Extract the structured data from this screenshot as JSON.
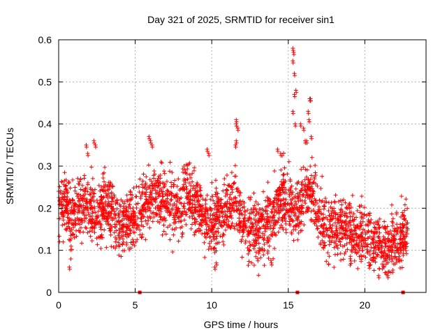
{
  "chart_data": {
    "type": "scatter",
    "title": "Day 321 of 2025, SRMTID for receiver sin1",
    "xlabel": "GPS time / hours",
    "ylabel": "SRMTID / TECUs",
    "xlim": [
      0,
      24
    ],
    "ylim": [
      0,
      0.6
    ],
    "x_ticks": [
      0,
      5,
      10,
      15,
      20
    ],
    "x_tick_labels": [
      "0",
      "5",
      "10",
      "15",
      "20"
    ],
    "y_ticks": [
      0,
      0.1,
      0.2,
      0.3,
      0.4,
      0.5,
      0.6
    ],
    "y_tick_labels": [
      "0",
      "0.1",
      "0.2",
      "0.3",
      "0.4",
      "0.5",
      "0.6"
    ],
    "grid": true,
    "marker": "+",
    "series_color": "#ff0000",
    "trend_anchors": [
      [
        0.0,
        0.2
      ],
      [
        0.4,
        0.22
      ],
      [
        0.8,
        0.17
      ],
      [
        1.2,
        0.2
      ],
      [
        1.8,
        0.21
      ],
      [
        2.5,
        0.19
      ],
      [
        3.0,
        0.21
      ],
      [
        3.5,
        0.19
      ],
      [
        4.0,
        0.15
      ],
      [
        4.5,
        0.17
      ],
      [
        5.0,
        0.17
      ],
      [
        5.5,
        0.21
      ],
      [
        6.0,
        0.23
      ],
      [
        6.5,
        0.24
      ],
      [
        7.0,
        0.21
      ],
      [
        7.5,
        0.2
      ],
      [
        8.0,
        0.21
      ],
      [
        8.5,
        0.23
      ],
      [
        9.0,
        0.2
      ],
      [
        9.5,
        0.18
      ],
      [
        10.0,
        0.16
      ],
      [
        10.5,
        0.19
      ],
      [
        11.0,
        0.2
      ],
      [
        11.5,
        0.23
      ],
      [
        12.0,
        0.16
      ],
      [
        12.5,
        0.15
      ],
      [
        13.0,
        0.15
      ],
      [
        13.5,
        0.16
      ],
      [
        14.0,
        0.18
      ],
      [
        14.5,
        0.23
      ],
      [
        15.0,
        0.22
      ],
      [
        15.5,
        0.19
      ],
      [
        16.0,
        0.22
      ],
      [
        16.5,
        0.24
      ],
      [
        17.0,
        0.19
      ],
      [
        17.5,
        0.15
      ],
      [
        18.0,
        0.16
      ],
      [
        18.5,
        0.16
      ],
      [
        19.0,
        0.15
      ],
      [
        19.5,
        0.14
      ],
      [
        20.0,
        0.14
      ],
      [
        20.5,
        0.12
      ],
      [
        21.0,
        0.11
      ],
      [
        21.5,
        0.1
      ],
      [
        22.0,
        0.12
      ],
      [
        22.5,
        0.14
      ],
      [
        22.8,
        0.14
      ]
    ],
    "spread": 0.045,
    "points_per_hour": 120,
    "highlight_points": [
      [
        15.3,
        0.58
      ],
      [
        15.35,
        0.57
      ],
      [
        15.3,
        0.55
      ],
      [
        15.4,
        0.52
      ],
      [
        15.5,
        0.48
      ],
      [
        15.4,
        0.47
      ],
      [
        15.3,
        0.43
      ],
      [
        15.45,
        0.4
      ],
      [
        15.8,
        0.4
      ],
      [
        16.0,
        0.39
      ],
      [
        16.1,
        0.36
      ],
      [
        16.2,
        0.36
      ],
      [
        16.4,
        0.46
      ],
      [
        16.45,
        0.46
      ],
      [
        16.3,
        0.43
      ],
      [
        16.35,
        0.41
      ],
      [
        16.5,
        0.37
      ],
      [
        11.6,
        0.41
      ],
      [
        11.6,
        0.4
      ],
      [
        11.7,
        0.39
      ],
      [
        11.55,
        0.35
      ],
      [
        11.6,
        0.36
      ],
      [
        5.9,
        0.37
      ],
      [
        6.0,
        0.36
      ],
      [
        6.1,
        0.35
      ],
      [
        1.8,
        0.35
      ],
      [
        1.9,
        0.33
      ],
      [
        2.3,
        0.36
      ],
      [
        2.4,
        0.35
      ],
      [
        9.7,
        0.34
      ],
      [
        9.8,
        0.33
      ],
      [
        14.3,
        0.34
      ],
      [
        14.5,
        0.33
      ],
      [
        0.7,
        0.06
      ],
      [
        10.2,
        0.06
      ],
      [
        10.3,
        0.07
      ],
      [
        20.9,
        0.04
      ],
      [
        21.5,
        0.04
      ],
      [
        13.0,
        0.08
      ],
      [
        13.9,
        0.07
      ]
    ],
    "zero_markers": [
      5.3,
      15.6,
      22.5
    ]
  }
}
